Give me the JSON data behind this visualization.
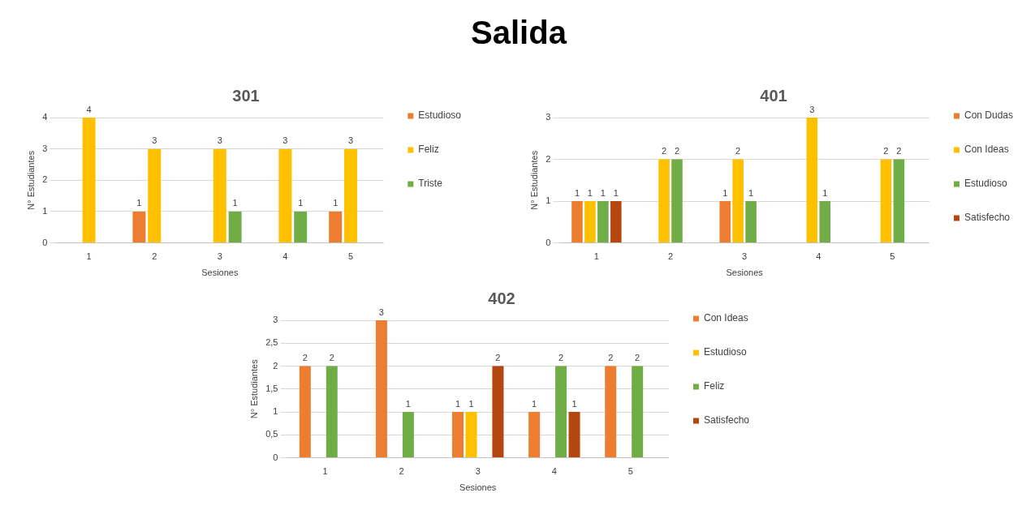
{
  "chart_data": [
    {
      "type": "other",
      "title": "Salida"
    },
    {
      "type": "bar",
      "title": "301",
      "xlabel": "Sesiones",
      "ylabel": "N° Estudiantes",
      "categories": [
        "1",
        "2",
        "3",
        "4",
        "5"
      ],
      "ylim": [
        0,
        4
      ],
      "yticks": [
        0,
        1,
        2,
        3,
        4
      ],
      "grid": "y",
      "legend": "right",
      "data_labels": true,
      "series": [
        {
          "name": "Estudioso",
          "color": "#ed7d31",
          "values": [
            null,
            1,
            null,
            null,
            1
          ]
        },
        {
          "name": "Feliz",
          "color": "#ffc000",
          "values": [
            4,
            3,
            3,
            3,
            3
          ]
        },
        {
          "name": "Triste",
          "color": "#70ad47",
          "values": [
            null,
            null,
            1,
            1,
            null
          ]
        }
      ]
    },
    {
      "type": "bar",
      "title": "401",
      "xlabel": "Sesiones",
      "ylabel": "N° Estudiantes",
      "categories": [
        "1",
        "2",
        "3",
        "4",
        "5"
      ],
      "ylim": [
        0,
        3
      ],
      "yticks": [
        0,
        1,
        2,
        3
      ],
      "grid": "y",
      "legend": "right",
      "data_labels": true,
      "series": [
        {
          "name": "Con Dudas",
          "color": "#ed7d31",
          "values": [
            1,
            null,
            1,
            null,
            null
          ]
        },
        {
          "name": "Con Ideas",
          "color": "#ffc000",
          "values": [
            1,
            2,
            2,
            3,
            2
          ]
        },
        {
          "name": "Estudioso",
          "color": "#70ad47",
          "values": [
            1,
            2,
            1,
            1,
            2
          ]
        },
        {
          "name": "Satisfecho",
          "color": "#b4470f",
          "values": [
            1,
            null,
            null,
            null,
            null
          ]
        }
      ]
    },
    {
      "type": "bar",
      "title": "402",
      "xlabel": "Sesiones",
      "ylabel": "N° Estudiantes",
      "categories": [
        "1",
        "2",
        "3",
        "4",
        "5"
      ],
      "ylim": [
        0,
        3
      ],
      "yticks": [
        0,
        {
          "value": 0.5,
          "label": "0,5"
        },
        1,
        {
          "value": 1.5,
          "label": "1,5"
        },
        2,
        {
          "value": 2.5,
          "label": "2,5"
        },
        3
      ],
      "grid": "y",
      "legend": "right",
      "data_labels": true,
      "series": [
        {
          "name": "Con Ideas",
          "color": "#ed7d31",
          "values": [
            2,
            3,
            1,
            1,
            2
          ]
        },
        {
          "name": "Estudioso",
          "color": "#ffc000",
          "values": [
            null,
            null,
            1,
            null,
            null
          ]
        },
        {
          "name": "Feliz",
          "color": "#70ad47",
          "values": [
            2,
            1,
            null,
            2,
            2
          ]
        },
        {
          "name": "Satisfecho",
          "color": "#b4470f",
          "values": [
            null,
            null,
            2,
            1,
            null
          ]
        }
      ]
    }
  ]
}
